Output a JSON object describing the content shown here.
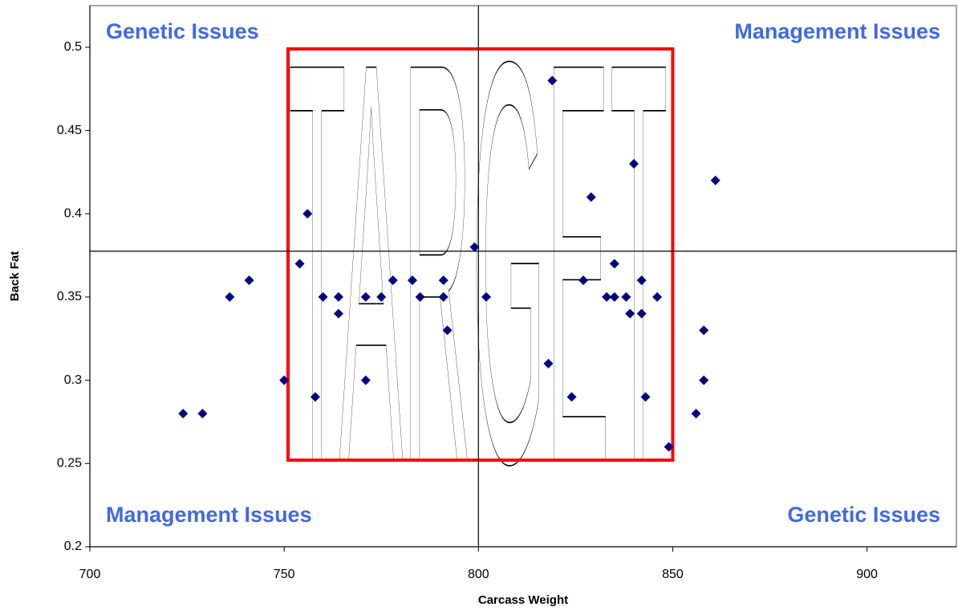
{
  "chart_data": {
    "type": "scatter",
    "x_label": "Carcass Weight",
    "y_label": "Back Fat",
    "xlim": [
      700,
      923
    ],
    "ylim": [
      0.2,
      0.525
    ],
    "xticks": [
      700,
      750,
      800,
      850,
      900
    ],
    "yticks": [
      0.2,
      0.25,
      0.3,
      0.35,
      0.4,
      0.45,
      0.5
    ],
    "series": [
      {
        "color": "#000080",
        "x": [
          724,
          729,
          736,
          741,
          750,
          754,
          756,
          758,
          760,
          764,
          764,
          771,
          771,
          775,
          778,
          783,
          785,
          791,
          791,
          792,
          799,
          802,
          818,
          819,
          824,
          827,
          829,
          833,
          835,
          835,
          838,
          839,
          840,
          842,
          842,
          843,
          846,
          849,
          856,
          858,
          858,
          861
        ],
        "values": [
          0.28,
          0.28,
          0.35,
          0.36,
          0.3,
          0.37,
          0.4,
          0.29,
          0.35,
          0.35,
          0.34,
          0.35,
          0.3,
          0.35,
          0.36,
          0.36,
          0.35,
          0.36,
          0.35,
          0.33,
          0.38,
          0.35,
          0.31,
          0.48,
          0.29,
          0.36,
          0.41,
          0.35,
          0.35,
          0.37,
          0.35,
          0.34,
          0.43,
          0.36,
          0.34,
          0.29,
          0.35,
          0.26,
          0.28,
          0.33,
          0.3,
          0.42
        ]
      }
    ],
    "reference_lines": {
      "x": 800,
      "y": 0.3775
    },
    "target": {
      "label": "TARGET",
      "x": [
        751,
        850
      ],
      "y": [
        0.252,
        0.499
      ],
      "color": "#ff0000"
    },
    "annotation_color": "#4169e1",
    "annotations": [
      {
        "text": "Genetic Issues",
        "x": 700,
        "y": 0.525,
        "anchor": "start"
      },
      {
        "text": "Management Issues",
        "x": 923,
        "y": 0.525,
        "anchor": "end"
      },
      {
        "text": "Management Issues",
        "x": 700,
        "y": 0.2,
        "anchor": "start"
      },
      {
        "text": "Genetic Issues",
        "x": 923,
        "y": 0.2,
        "anchor": "end"
      }
    ]
  }
}
